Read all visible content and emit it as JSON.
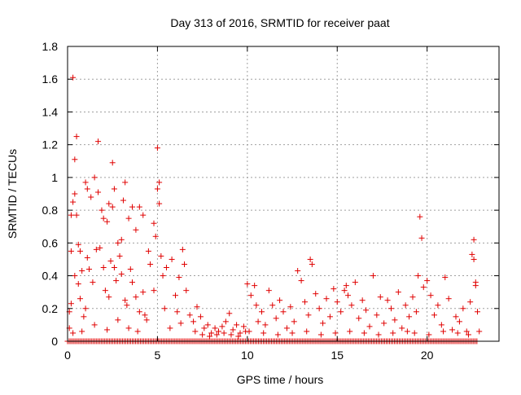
{
  "chart_data": {
    "type": "scatter",
    "title": "Day 313 of 2016, SRMTID for receiver paat",
    "xlabel": "GPS time / hours",
    "ylabel": "SRMTID / TECUs",
    "xlim": [
      0,
      24
    ],
    "ylim": [
      0,
      1.8
    ],
    "x_ticks": [
      0,
      5,
      10,
      15,
      20
    ],
    "x_tick_labels": [
      "0",
      "5",
      "10",
      "15",
      "20"
    ],
    "y_ticks": [
      0,
      0.2,
      0.4,
      0.6,
      0.8,
      1.0,
      1.2,
      1.4,
      1.6,
      1.8
    ],
    "y_tick_labels": [
      "0",
      "0.2",
      "0.4",
      "0.6",
      "0.8",
      "1",
      "1.2",
      "1.4",
      "1.6",
      "1.8"
    ],
    "grid": true,
    "marker": "+",
    "marker_color": "#e00000",
    "series": [
      {
        "name": "SRMTID",
        "points": [
          [
            0.3,
            1.61
          ],
          [
            0.5,
            1.25
          ],
          [
            0.4,
            1.11
          ],
          [
            1.7,
            1.22
          ],
          [
            2.5,
            1.09
          ],
          [
            5.0,
            1.18
          ],
          [
            0.2,
            0.77
          ],
          [
            0.3,
            0.85
          ],
          [
            0.4,
            0.9
          ],
          [
            0.5,
            0.77
          ],
          [
            0.6,
            0.59
          ],
          [
            0.7,
            0.55
          ],
          [
            0.8,
            0.43
          ],
          [
            1.0,
            0.97
          ],
          [
            1.1,
            0.93
          ],
          [
            1.3,
            0.88
          ],
          [
            1.5,
            1.0
          ],
          [
            1.7,
            0.91
          ],
          [
            1.9,
            0.8
          ],
          [
            2.0,
            0.75
          ],
          [
            2.2,
            0.73
          ],
          [
            2.3,
            0.84
          ],
          [
            2.5,
            0.82
          ],
          [
            2.6,
            0.93
          ],
          [
            2.8,
            0.6
          ],
          [
            3.0,
            0.62
          ],
          [
            3.1,
            0.86
          ],
          [
            3.2,
            0.97
          ],
          [
            3.4,
            0.75
          ],
          [
            3.6,
            0.82
          ],
          [
            3.8,
            0.68
          ],
          [
            4.0,
            0.82
          ],
          [
            4.2,
            0.77
          ],
          [
            4.5,
            0.55
          ],
          [
            4.8,
            0.72
          ],
          [
            5.0,
            0.93
          ],
          [
            5.1,
            0.97
          ],
          [
            5.1,
            0.84
          ],
          [
            4.9,
            0.64
          ],
          [
            5.2,
            0.52
          ],
          [
            0.2,
            0.55
          ],
          [
            0.4,
            0.4
          ],
          [
            0.6,
            0.35
          ],
          [
            0.7,
            0.26
          ],
          [
            0.9,
            0.15
          ],
          [
            1.1,
            0.51
          ],
          [
            1.2,
            0.44
          ],
          [
            1.4,
            0.36
          ],
          [
            1.6,
            0.56
          ],
          [
            1.8,
            0.57
          ],
          [
            2.0,
            0.45
          ],
          [
            2.1,
            0.31
          ],
          [
            2.3,
            0.27
          ],
          [
            2.4,
            0.49
          ],
          [
            2.6,
            0.45
          ],
          [
            2.7,
            0.37
          ],
          [
            2.9,
            0.52
          ],
          [
            3.0,
            0.41
          ],
          [
            3.2,
            0.25
          ],
          [
            3.3,
            0.22
          ],
          [
            3.5,
            0.44
          ],
          [
            3.6,
            0.36
          ],
          [
            3.8,
            0.27
          ],
          [
            4.0,
            0.18
          ],
          [
            4.2,
            0.3
          ],
          [
            4.4,
            0.13
          ],
          [
            4.6,
            0.47
          ],
          [
            4.8,
            0.31
          ],
          [
            5.3,
            0.4
          ],
          [
            5.5,
            0.45
          ],
          [
            5.8,
            0.5
          ],
          [
            6.0,
            0.28
          ],
          [
            6.2,
            0.39
          ],
          [
            6.4,
            0.56
          ],
          [
            6.5,
            0.47
          ],
          [
            6.6,
            0.31
          ],
          [
            1.0,
            0.2
          ],
          [
            1.5,
            0.1
          ],
          [
            2.2,
            0.07
          ],
          [
            2.8,
            0.13
          ],
          [
            3.4,
            0.08
          ],
          [
            3.9,
            0.06
          ],
          [
            4.3,
            0.16
          ],
          [
            5.4,
            0.2
          ],
          [
            5.7,
            0.08
          ],
          [
            6.1,
            0.18
          ],
          [
            6.3,
            0.11
          ],
          [
            0.1,
            0.08
          ],
          [
            0.1,
            0.18
          ],
          [
            0.2,
            0.23
          ],
          [
            0.3,
            0.05
          ],
          [
            0.8,
            0.06
          ],
          [
            6.8,
            0.16
          ],
          [
            7.0,
            0.12
          ],
          [
            7.2,
            0.21
          ],
          [
            7.4,
            0.15
          ],
          [
            7.6,
            0.08
          ],
          [
            7.8,
            0.1
          ],
          [
            8.0,
            0.05
          ],
          [
            8.2,
            0.08
          ],
          [
            8.4,
            0.06
          ],
          [
            8.6,
            0.09
          ],
          [
            8.8,
            0.12
          ],
          [
            9.0,
            0.17
          ],
          [
            9.2,
            0.07
          ],
          [
            9.4,
            0.1
          ],
          [
            9.6,
            0.05
          ],
          [
            9.8,
            0.09
          ],
          [
            7.1,
            0.06
          ],
          [
            7.5,
            0.04
          ],
          [
            7.9,
            0.03
          ],
          [
            8.3,
            0.04
          ],
          [
            8.7,
            0.05
          ],
          [
            9.1,
            0.04
          ],
          [
            9.5,
            0.03
          ],
          [
            9.9,
            0.06
          ],
          [
            10.0,
            0.35
          ],
          [
            10.2,
            0.28
          ],
          [
            10.4,
            0.34
          ],
          [
            10.5,
            0.22
          ],
          [
            10.6,
            0.12
          ],
          [
            10.8,
            0.18
          ],
          [
            11.0,
            0.1
          ],
          [
            11.2,
            0.31
          ],
          [
            11.4,
            0.22
          ],
          [
            11.6,
            0.14
          ],
          [
            11.8,
            0.25
          ],
          [
            12.0,
            0.18
          ],
          [
            12.2,
            0.08
          ],
          [
            12.4,
            0.21
          ],
          [
            12.6,
            0.12
          ],
          [
            12.8,
            0.43
          ],
          [
            13.0,
            0.37
          ],
          [
            13.2,
            0.24
          ],
          [
            13.4,
            0.16
          ],
          [
            13.5,
            0.5
          ],
          [
            13.6,
            0.47
          ],
          [
            13.8,
            0.29
          ],
          [
            14.0,
            0.2
          ],
          [
            14.2,
            0.11
          ],
          [
            14.4,
            0.26
          ],
          [
            14.6,
            0.15
          ],
          [
            14.8,
            0.32
          ],
          [
            15.0,
            0.24
          ],
          [
            15.2,
            0.18
          ],
          [
            15.4,
            0.31
          ],
          [
            15.5,
            0.34
          ],
          [
            15.6,
            0.28
          ],
          [
            15.8,
            0.22
          ],
          [
            16.0,
            0.36
          ],
          [
            16.2,
            0.14
          ],
          [
            16.4,
            0.25
          ],
          [
            16.6,
            0.19
          ],
          [
            16.8,
            0.09
          ],
          [
            17.0,
            0.4
          ],
          [
            17.2,
            0.16
          ],
          [
            17.4,
            0.27
          ],
          [
            17.6,
            0.11
          ],
          [
            17.8,
            0.25
          ],
          [
            18.0,
            0.2
          ],
          [
            18.2,
            0.13
          ],
          [
            18.4,
            0.3
          ],
          [
            18.6,
            0.08
          ],
          [
            18.8,
            0.22
          ],
          [
            19.0,
            0.15
          ],
          [
            19.2,
            0.27
          ],
          [
            19.4,
            0.18
          ],
          [
            19.5,
            0.4
          ],
          [
            19.6,
            0.76
          ],
          [
            19.7,
            0.63
          ],
          [
            19.8,
            0.33
          ],
          [
            20.0,
            0.37
          ],
          [
            20.2,
            0.28
          ],
          [
            20.4,
            0.16
          ],
          [
            20.6,
            0.22
          ],
          [
            20.8,
            0.1
          ],
          [
            21.0,
            0.39
          ],
          [
            21.2,
            0.26
          ],
          [
            21.4,
            0.07
          ],
          [
            21.6,
            0.15
          ],
          [
            21.8,
            0.12
          ],
          [
            22.0,
            0.2
          ],
          [
            22.2,
            0.06
          ],
          [
            22.4,
            0.24
          ],
          [
            22.5,
            0.53
          ],
          [
            22.6,
            0.62
          ],
          [
            22.6,
            0.5
          ],
          [
            22.7,
            0.36
          ],
          [
            22.7,
            0.34
          ],
          [
            22.8,
            0.18
          ],
          [
            10.1,
            0.06
          ],
          [
            10.9,
            0.05
          ],
          [
            11.7,
            0.04
          ],
          [
            12.5,
            0.05
          ],
          [
            13.3,
            0.06
          ],
          [
            14.1,
            0.04
          ],
          [
            14.9,
            0.05
          ],
          [
            15.7,
            0.06
          ],
          [
            16.5,
            0.05
          ],
          [
            17.3,
            0.04
          ],
          [
            18.1,
            0.05
          ],
          [
            18.9,
            0.06
          ],
          [
            19.3,
            0.05
          ],
          [
            20.1,
            0.04
          ],
          [
            20.9,
            0.06
          ],
          [
            21.7,
            0.05
          ],
          [
            22.3,
            0.04
          ],
          [
            22.9,
            0.06
          ]
        ],
        "baseline_points": {
          "x_start": 0.0,
          "x_end": 22.8,
          "x_step": 0.09,
          "y": 0.0
        }
      }
    ]
  }
}
